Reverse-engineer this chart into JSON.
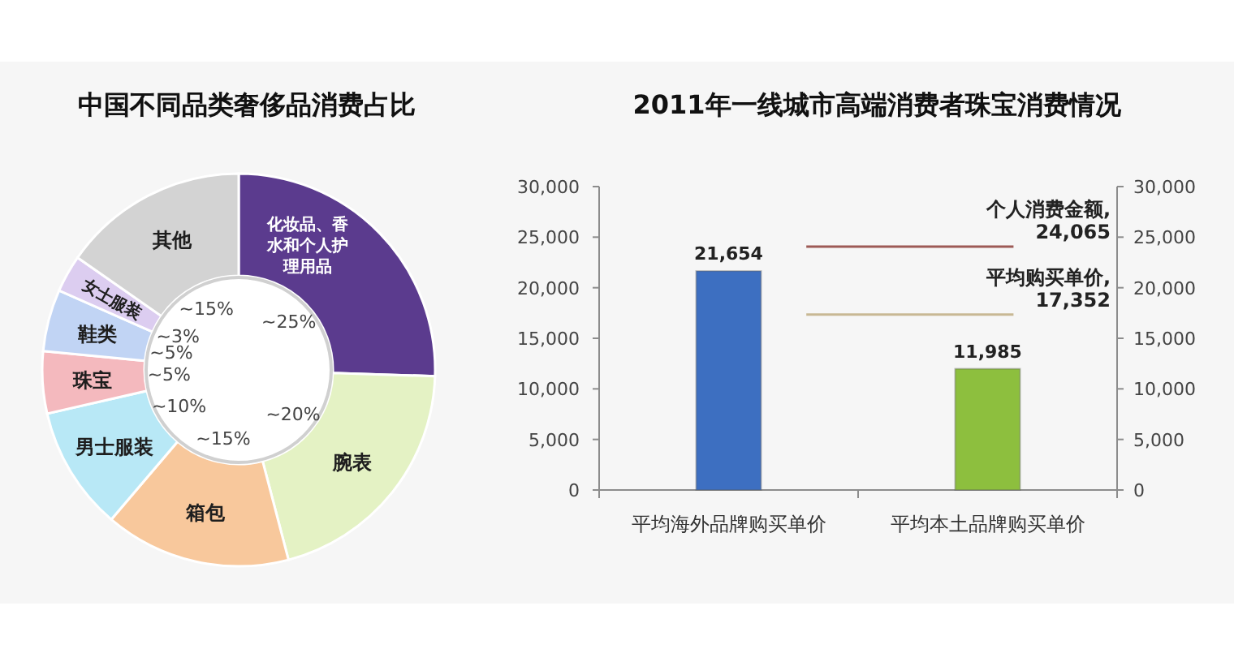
{
  "chart_data": [
    {
      "type": "donut",
      "title": "中国不同品类奢侈品消费占比",
      "categories": [
        "化妆品、香水和个人护理用品",
        "腕表",
        "箱包",
        "男士服装",
        "珠宝",
        "鞋类",
        "女士服装",
        "其他"
      ],
      "values": [
        25,
        20,
        15,
        10,
        5,
        5,
        3,
        15
      ],
      "value_labels": [
        "~25%",
        "~20%",
        "~15%",
        "~10%",
        "~5%",
        "~5%",
        "~3%",
        "~15%"
      ],
      "colors": [
        "#5b3b8e",
        "#e4f2c4",
        "#f8c89c",
        "#b8e8f6",
        "#f4b9be",
        "#c1d4f4",
        "#dccdf0",
        "#d3d3d3"
      ]
    },
    {
      "type": "bar",
      "title": "2011年一线城市高端消费者珠宝消费情况",
      "categories": [
        "平均海外品牌购买单价",
        "平均本土品牌购买单价"
      ],
      "values": [
        21654,
        11985
      ],
      "value_labels": [
        "21,654",
        "11,985"
      ],
      "colors": [
        "#3d6fc1",
        "#8dbf3e"
      ],
      "ylim": [
        0,
        30000
      ],
      "yticks": [
        0,
        {
          "value": 5000,
          "label": "5,000"
        },
        {
          "value": 10000,
          "label": "10,000"
        },
        {
          "value": 15000,
          "label": "15,000"
        },
        {
          "value": 20000,
          "label": "20,000"
        },
        {
          "value": 25000,
          "label": "25,000"
        },
        {
          "value": 30000,
          "label": "30,000"
        }
      ],
      "y2lim": [
        0,
        30000
      ],
      "y2ticks": [
        0,
        {
          "value": 5000,
          "label": "5,000"
        },
        {
          "value": 10000,
          "label": "10,000"
        },
        {
          "value": 15000,
          "label": "15,000"
        },
        {
          "value": 20000,
          "label": "20,000"
        },
        {
          "value": 25000,
          "label": "25,000"
        },
        {
          "value": 30000,
          "label": "30,000"
        }
      ],
      "ref_lines": [
        {
          "axis": "y2",
          "value": 24065,
          "label": "个人消费金额, 24,065",
          "color": "#9d5a56"
        },
        {
          "axis": "y2",
          "value": 17352,
          "label": "平均购买单价, 17,352",
          "color": "#c8b894"
        }
      ]
    }
  ]
}
